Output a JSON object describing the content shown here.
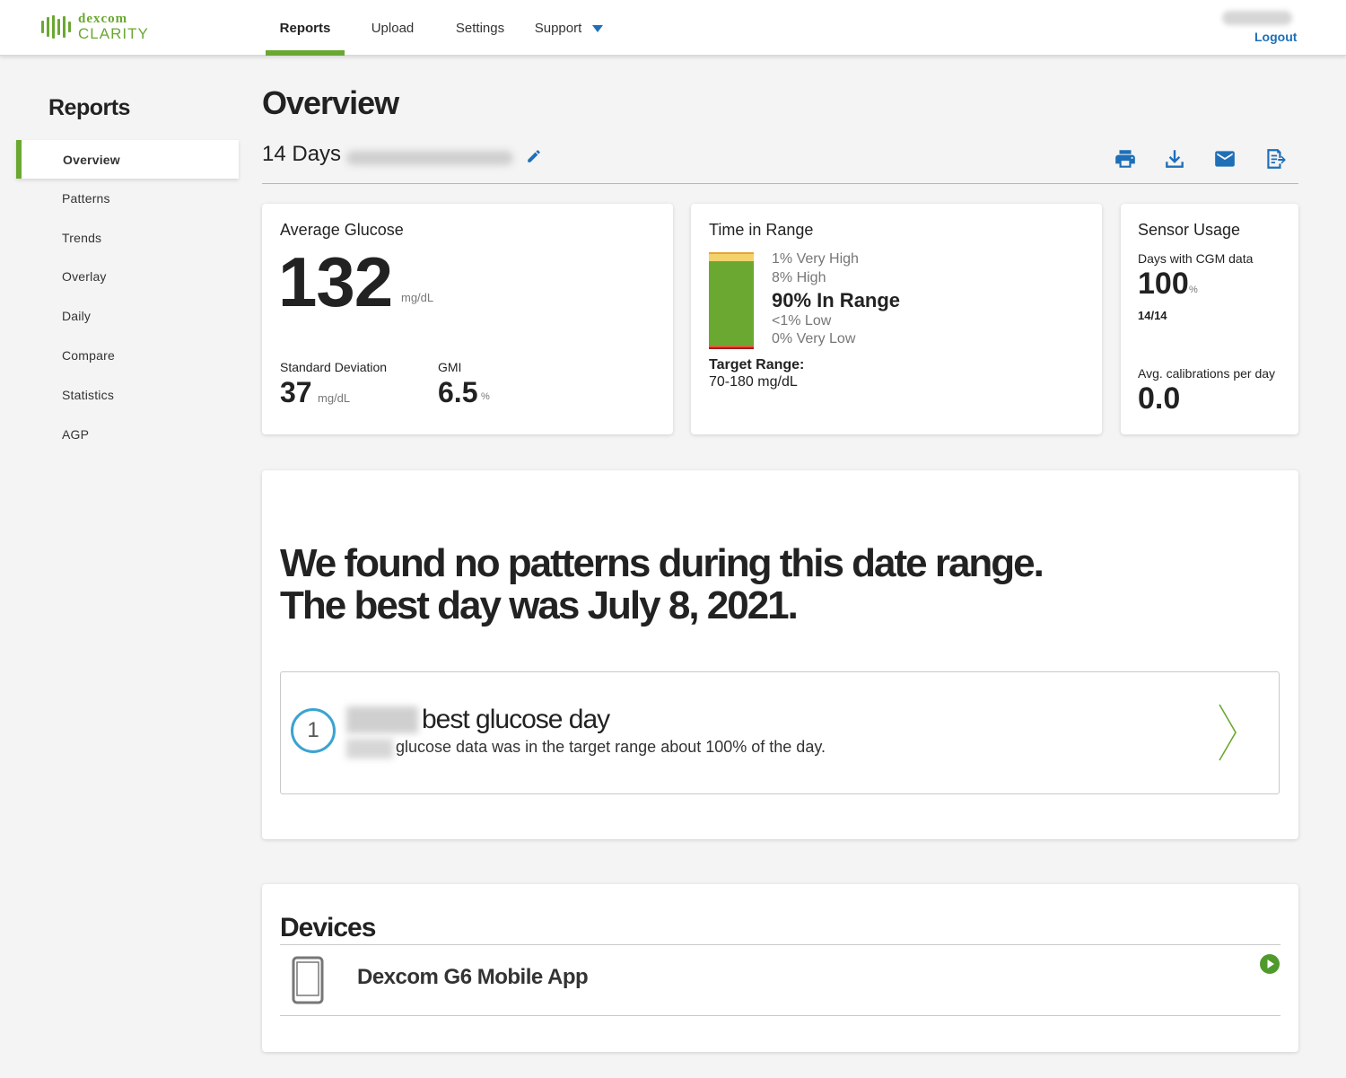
{
  "brand": {
    "line1": "dexcom",
    "line2": "CLARITY",
    "color": "#6aa832"
  },
  "nav": {
    "items": [
      {
        "label": "Reports"
      },
      {
        "label": "Upload"
      },
      {
        "label": "Settings"
      },
      {
        "label": "Support"
      }
    ],
    "active": "Reports"
  },
  "user": {
    "logout_label": "Logout"
  },
  "sidebar": {
    "title": "Reports",
    "items": [
      {
        "label": "Overview"
      },
      {
        "label": "Patterns"
      },
      {
        "label": "Trends"
      },
      {
        "label": "Overlay"
      },
      {
        "label": "Daily"
      },
      {
        "label": "Compare"
      },
      {
        "label": "Statistics"
      },
      {
        "label": "AGP"
      }
    ],
    "active": "Overview"
  },
  "main": {
    "title": "Overview",
    "range_label": "14 Days",
    "toolbar": [
      "print-icon",
      "download-icon",
      "email-icon",
      "export-icon"
    ]
  },
  "average_glucose": {
    "title": "Average Glucose",
    "value": "132",
    "unit": "mg/dL",
    "sd_label": "Standard Deviation",
    "sd_value": "37",
    "sd_unit": "mg/dL",
    "gmi_label": "GMI",
    "gmi_value": "6.5",
    "gmi_unit": "%"
  },
  "time_in_range": {
    "title": "Time in Range",
    "very_high": "1% Very High",
    "high": "8% High",
    "in_range": "90% In Range",
    "low": "<1% Low",
    "very_low": "0% Very Low",
    "target_label": "Target Range:",
    "target_value": "70-180 mg/dL",
    "percentages": {
      "very_high": 1,
      "high": 8,
      "in_range": 90,
      "low": 0.5,
      "very_low": 0
    },
    "colors": {
      "very_high": "#e8a33a",
      "high": "#f3d26b",
      "in_range": "#6aa832",
      "low": "#e05a3a",
      "very_low": "#a81c1c"
    }
  },
  "sensor_usage": {
    "title": "Sensor Usage",
    "days_label": "Days with CGM data",
    "days_value": "100",
    "days_unit": "%",
    "days_fraction": "14/14",
    "cal_label": "Avg. calibrations per day",
    "cal_value": "0.0"
  },
  "patterns": {
    "headline_line1": "We found no patterns during this date range.",
    "headline_line2": "The best day was July 8, 2021.",
    "best_day": {
      "rank": "1",
      "title": "best glucose day",
      "description": "glucose data was in the target range about 100% of the day."
    }
  },
  "devices": {
    "title": "Devices",
    "items": [
      {
        "name": "Dexcom G6 Mobile App"
      }
    ]
  }
}
